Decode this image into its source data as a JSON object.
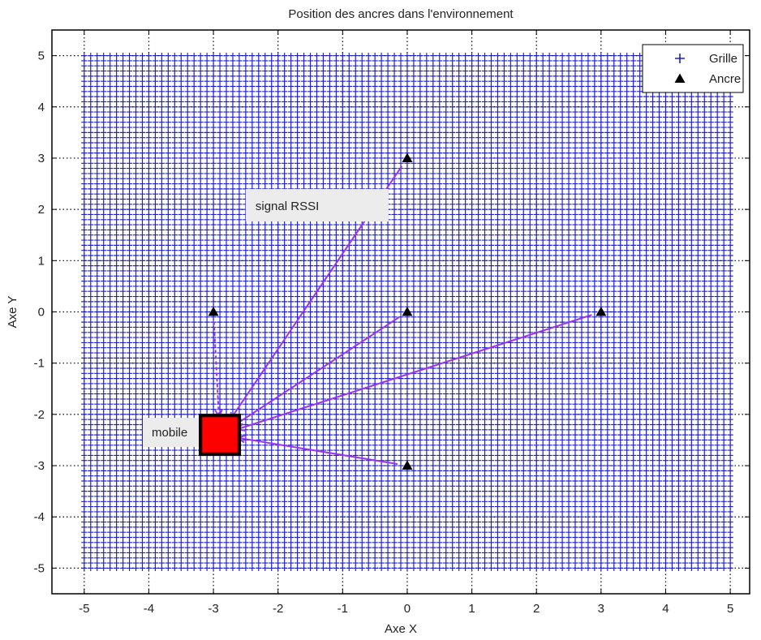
{
  "chart_data": {
    "type": "scatter",
    "title": "Position des ancres dans l'environnement",
    "xlabel": "Axe X",
    "ylabel": "Axe Y",
    "xlim": [
      -5.5,
      5.3
    ],
    "ylim": [
      -5.5,
      5.5
    ],
    "xticks": [
      -5,
      -4,
      -3,
      -2,
      -1,
      0,
      1,
      2,
      3,
      4,
      5
    ],
    "yticks": [
      -5,
      -4,
      -3,
      -2,
      -1,
      0,
      1,
      2,
      3,
      4,
      5
    ],
    "grid": true,
    "legend_position": "top-right",
    "series": [
      {
        "name": "Grille",
        "marker": "+",
        "color": "#1f1fd1",
        "x_range": [
          -5,
          5
        ],
        "y_range": [
          -5,
          5
        ],
        "step": 0.1
      },
      {
        "name": "Ancre",
        "marker": "triangle",
        "color": "#000000",
        "points": [
          [
            0,
            3
          ],
          [
            -3,
            0
          ],
          [
            0,
            0
          ],
          [
            3,
            0
          ],
          [
            0,
            -3
          ]
        ]
      }
    ],
    "mobile": {
      "label": "mobile",
      "x": -2.9,
      "y": -2.4,
      "color": "#ff0000"
    },
    "arrow_color": "#9933ee",
    "annotations": [
      {
        "text": "signal RSSI",
        "x": -2.5,
        "y": 2.05
      }
    ]
  }
}
